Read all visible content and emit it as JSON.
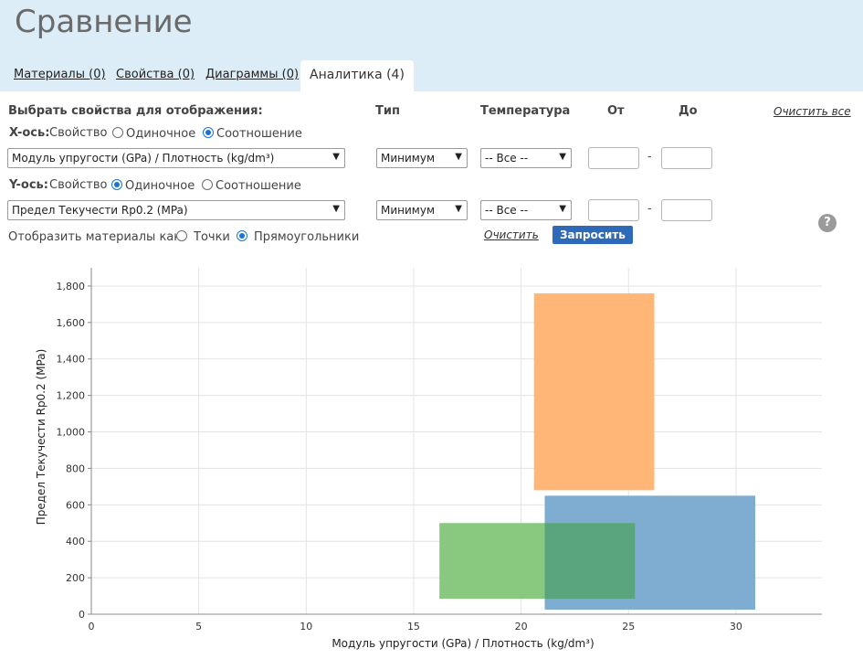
{
  "page": {
    "title": "Сравнение"
  },
  "tabs": [
    {
      "label": "Материалы (0)"
    },
    {
      "label": "Свойства (0)"
    },
    {
      "label": "Диаграммы (0)"
    },
    {
      "label": "Аналитика (4)",
      "active": true
    }
  ],
  "controls": {
    "heading": "Выбрать свойства для отображения:",
    "col_type": "Тип",
    "col_temp": "Температура",
    "col_from": "От",
    "col_to": "До",
    "clear_all": "Очистить все",
    "x_axis_label": "X-ось:",
    "y_axis_label": "Y-ось:",
    "property_word": "Свойство",
    "opt_single": "Одиночное",
    "opt_ratio": "Соотношение",
    "x_mode": "ratio",
    "y_mode": "single",
    "x_property": "Модуль упругости (GPa) / Плотность (kg/dm³)",
    "y_property": "Предел Текучести Rp0.2 (MPa)",
    "x_type": "Минимум",
    "y_type": "Минимум",
    "x_temp": "-- Все --",
    "y_temp": "-- Все --",
    "x_from": "",
    "x_to": "",
    "y_from": "",
    "y_to": "",
    "range_dash": "-",
    "display_as": "Отобразить материалы как:",
    "opt_points": "Точки",
    "opt_rects": "Прямоугольники",
    "display_mode": "rectangles",
    "clear": "Очистить",
    "query": "Запросить",
    "help": "?"
  },
  "chart_data": {
    "type": "rectangles",
    "xlabel": "Модуль упругости (GPa) / Плотность (kg/dm³)",
    "ylabel": "Предел Текучести Rp0.2 (MPa)",
    "xlim": [
      0,
      34
    ],
    "ylim": [
      0,
      1900
    ],
    "xticks": [
      0,
      5,
      10,
      15,
      20,
      25,
      30
    ],
    "yticks": [
      0,
      200,
      400,
      600,
      800,
      1000,
      1200,
      1400,
      1600,
      1800
    ],
    "ytick_labels": [
      "0",
      "200",
      "400",
      "600",
      "800",
      "1,000",
      "1,200",
      "1,400",
      "1,600",
      "1,800"
    ],
    "grid": true,
    "series": [
      {
        "x": [
          20.6,
          26.2
        ],
        "y": [
          680,
          1760
        ],
        "color": "#ffb677"
      },
      {
        "x": [
          21.1,
          30.9
        ],
        "y": [
          25,
          650
        ],
        "color": "#7facd1"
      },
      {
        "x": [
          16.2,
          25.3
        ],
        "y": [
          85,
          500
        ],
        "color": "#88c97f"
      }
    ],
    "overlap_color": "#5aa57e"
  }
}
